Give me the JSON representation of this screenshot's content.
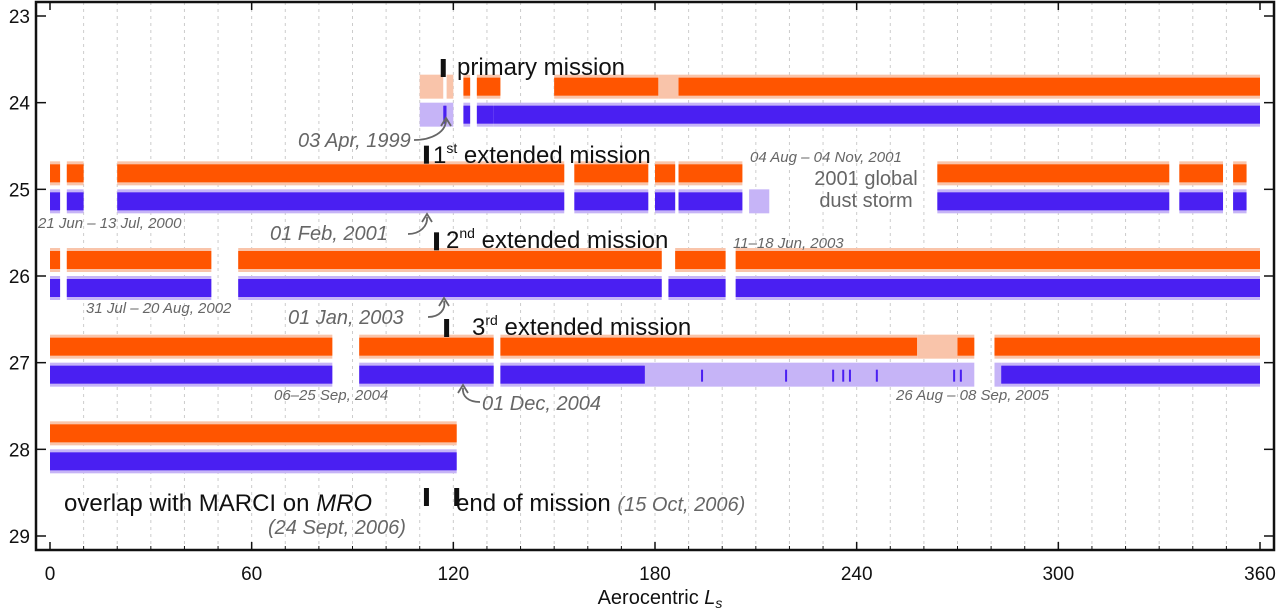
{
  "chart_data": {
    "type": "timeline",
    "xlabel": "Aerocentric",
    "xlabel_symbol": "L",
    "xlabel_sub": "s",
    "xlim": [
      0,
      360
    ],
    "ylim": [
      23,
      29
    ],
    "y_inverted": true,
    "grid": true,
    "x_ticks": [
      0,
      60,
      120,
      180,
      240,
      300,
      360
    ],
    "y_ticks": [
      23,
      24,
      25,
      26,
      27,
      28,
      29
    ],
    "colors": {
      "orange_full": "#ff5500",
      "orange_partial": "#f9c4aa",
      "purple_full": "#4a1ff2",
      "purple_partial": "#c6b4f7",
      "grid": "#cccccc",
      "text_grey": "#666666"
    },
    "tracks": [
      {
        "year": 24,
        "orange": [
          {
            "x0": 110,
            "x1": 117,
            "level": "partial"
          },
          {
            "x0": 118,
            "x1": 120,
            "level": "partial"
          },
          {
            "x0": 123,
            "x1": 125,
            "level": "full"
          },
          {
            "x0": 127,
            "x1": 134,
            "level": "full"
          },
          {
            "x0": 150,
            "x1": 181,
            "level": "full"
          },
          {
            "x0": 181,
            "x1": 187,
            "level": "partial"
          },
          {
            "x0": 187,
            "x1": 360,
            "level": "full"
          }
        ],
        "purple": [
          {
            "x0": 110,
            "x1": 117,
            "level": "partial"
          },
          {
            "x0": 117,
            "x1": 118,
            "level": "full"
          },
          {
            "x0": 118,
            "x1": 120,
            "level": "partial"
          },
          {
            "x0": 123,
            "x1": 125,
            "level": "full"
          },
          {
            "x0": 127,
            "x1": 132,
            "level": "full"
          },
          {
            "x0": 132,
            "x1": 360,
            "level": "full"
          }
        ]
      },
      {
        "year": 25,
        "orange": [
          {
            "x0": 0,
            "x1": 3,
            "level": "full"
          },
          {
            "x0": 5,
            "x1": 10,
            "level": "full"
          },
          {
            "x0": 20,
            "x1": 153,
            "level": "full"
          },
          {
            "x0": 156,
            "x1": 178,
            "level": "full"
          },
          {
            "x0": 180,
            "x1": 186,
            "level": "full"
          },
          {
            "x0": 187,
            "x1": 206,
            "level": "full"
          },
          {
            "x0": 264,
            "x1": 333,
            "level": "full"
          },
          {
            "x0": 336,
            "x1": 349,
            "level": "full"
          },
          {
            "x0": 352,
            "x1": 356,
            "level": "full"
          }
        ],
        "purple": [
          {
            "x0": 0,
            "x1": 3,
            "level": "full"
          },
          {
            "x0": 5,
            "x1": 10,
            "level": "full"
          },
          {
            "x0": 20,
            "x1": 153,
            "level": "full"
          },
          {
            "x0": 156,
            "x1": 178,
            "level": "full"
          },
          {
            "x0": 180,
            "x1": 186,
            "level": "full"
          },
          {
            "x0": 187,
            "x1": 206,
            "level": "full"
          },
          {
            "x0": 208,
            "x1": 214,
            "level": "partial"
          },
          {
            "x0": 264,
            "x1": 333,
            "level": "full"
          },
          {
            "x0": 336,
            "x1": 349,
            "level": "full"
          },
          {
            "x0": 352,
            "x1": 356,
            "level": "full"
          }
        ]
      },
      {
        "year": 26,
        "orange": [
          {
            "x0": 0,
            "x1": 3,
            "level": "full"
          },
          {
            "x0": 5,
            "x1": 48,
            "level": "full"
          },
          {
            "x0": 56,
            "x1": 182,
            "level": "full"
          },
          {
            "x0": 186,
            "x1": 201,
            "level": "full"
          },
          {
            "x0": 204,
            "x1": 360,
            "level": "full"
          }
        ],
        "purple": [
          {
            "x0": 0,
            "x1": 3,
            "level": "full"
          },
          {
            "x0": 5,
            "x1": 48,
            "level": "full"
          },
          {
            "x0": 56,
            "x1": 182,
            "level": "full"
          },
          {
            "x0": 184,
            "x1": 201,
            "level": "full"
          },
          {
            "x0": 204,
            "x1": 360,
            "level": "full"
          }
        ]
      },
      {
        "year": 27,
        "orange": [
          {
            "x0": 0,
            "x1": 84,
            "level": "full"
          },
          {
            "x0": 92,
            "x1": 132,
            "level": "full"
          },
          {
            "x0": 134,
            "x1": 258,
            "level": "full"
          },
          {
            "x0": 258,
            "x1": 270,
            "level": "partial"
          },
          {
            "x0": 270,
            "x1": 275,
            "level": "full"
          },
          {
            "x0": 281,
            "x1": 360,
            "level": "full"
          }
        ],
        "purple": [
          {
            "x0": 0,
            "x1": 84,
            "level": "full"
          },
          {
            "x0": 92,
            "x1": 132,
            "level": "full"
          },
          {
            "x0": 134,
            "x1": 177,
            "level": "full"
          },
          {
            "x0": 177,
            "x1": 275,
            "level": "partial"
          },
          {
            "x0": 281,
            "x1": 283,
            "level": "partial"
          },
          {
            "x0": 283,
            "x1": 360,
            "level": "full"
          }
        ],
        "purple_marks": [
          194,
          219,
          233,
          236,
          238,
          246,
          269,
          271
        ]
      },
      {
        "year": 28,
        "orange": [
          {
            "x0": 0,
            "x1": 121,
            "level": "full"
          }
        ],
        "purple": [
          {
            "x0": 0,
            "x1": 121,
            "level": "full"
          }
        ]
      }
    ],
    "markers": [
      {
        "x": 117,
        "y": 23.6
      },
      {
        "x": 112,
        "y": 24.6
      },
      {
        "x": 115,
        "y": 25.6
      },
      {
        "x": 118,
        "y": 26.6
      },
      {
        "x": 112,
        "y": 28.55
      },
      {
        "x": 121,
        "y": 28.55
      }
    ],
    "annotations": {
      "primary": "primary mission",
      "ext1_pre": "1",
      "ext1_sup": "st",
      "ext1_post": " extended mission",
      "ext2_pre": "2",
      "ext2_sup": "nd",
      "ext2_post": " extended mission",
      "ext3_pre": "3",
      "ext3_sup": "rd",
      "ext3_post": " extended mission",
      "date_1999": "03 Apr, 1999",
      "date_2001": "01 Feb, 2001",
      "date_2003": "01 Jan, 2003",
      "date_2004": "01 Dec, 2004",
      "gap_2000": "21 Jun – 13 Jul, 2000",
      "gap_2001": "04 Aug – 04 Nov, 2001",
      "storm_line1": "2001 global",
      "storm_line2": "dust storm",
      "gap_2002": "31 Jul – 20 Aug, 2002",
      "gap_2003": "11–18 Jun, 2003",
      "gap_2004": "06–25 Sep, 2004",
      "gap_2005": "26 Aug – 08 Sep, 2005",
      "overlap_pre": "overlap with MARCI on ",
      "overlap_mro": "MRO",
      "overlap_date": "(24 Sept, 2006)",
      "end_text": "end of mission ",
      "end_date": "(15 Oct, 2006)"
    }
  }
}
